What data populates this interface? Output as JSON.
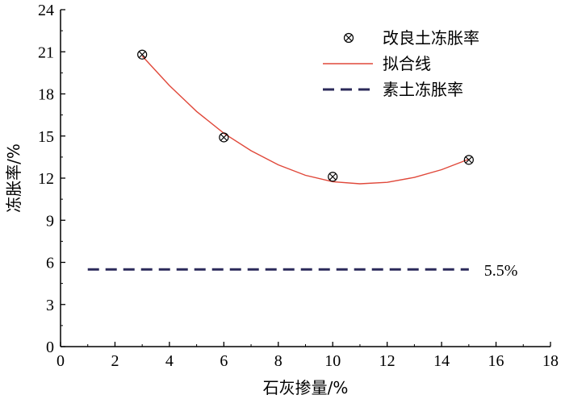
{
  "chart_data": {
    "type": "scatter",
    "title": "",
    "xlabel": "石灰掺量/%",
    "ylabel": "冻胀率/%",
    "xlim": [
      0,
      18
    ],
    "ylim": [
      0,
      24
    ],
    "xticks": [
      0,
      2,
      4,
      6,
      8,
      10,
      12,
      14,
      16,
      18
    ],
    "yticks": [
      0,
      3,
      6,
      9,
      12,
      15,
      18,
      21,
      24
    ],
    "grid": false,
    "legend_position": "top-right",
    "series": [
      {
        "name": "改良土冻胀率",
        "kind": "scatter",
        "marker": "circle-x",
        "color": "#000000",
        "x": [
          3,
          6,
          10,
          15
        ],
        "y": [
          20.8,
          14.9,
          12.1,
          13.3
        ]
      },
      {
        "name": "拟合线",
        "kind": "line",
        "color": "#e0483a",
        "x": [
          3,
          4,
          5,
          6,
          7,
          8,
          9,
          10,
          11,
          12,
          13,
          14,
          15
        ],
        "y": [
          20.7,
          18.6,
          16.75,
          15.2,
          13.95,
          12.95,
          12.2,
          11.75,
          11.6,
          11.7,
          12.05,
          12.6,
          13.35
        ]
      },
      {
        "name": "素土冻胀率",
        "kind": "hline",
        "color": "#2b2a5a",
        "x": [
          1,
          15
        ],
        "y": [
          5.5,
          5.5
        ]
      }
    ],
    "annotations": [
      {
        "text": "5.5%",
        "x": 15.5,
        "y": 5.5
      }
    ]
  }
}
